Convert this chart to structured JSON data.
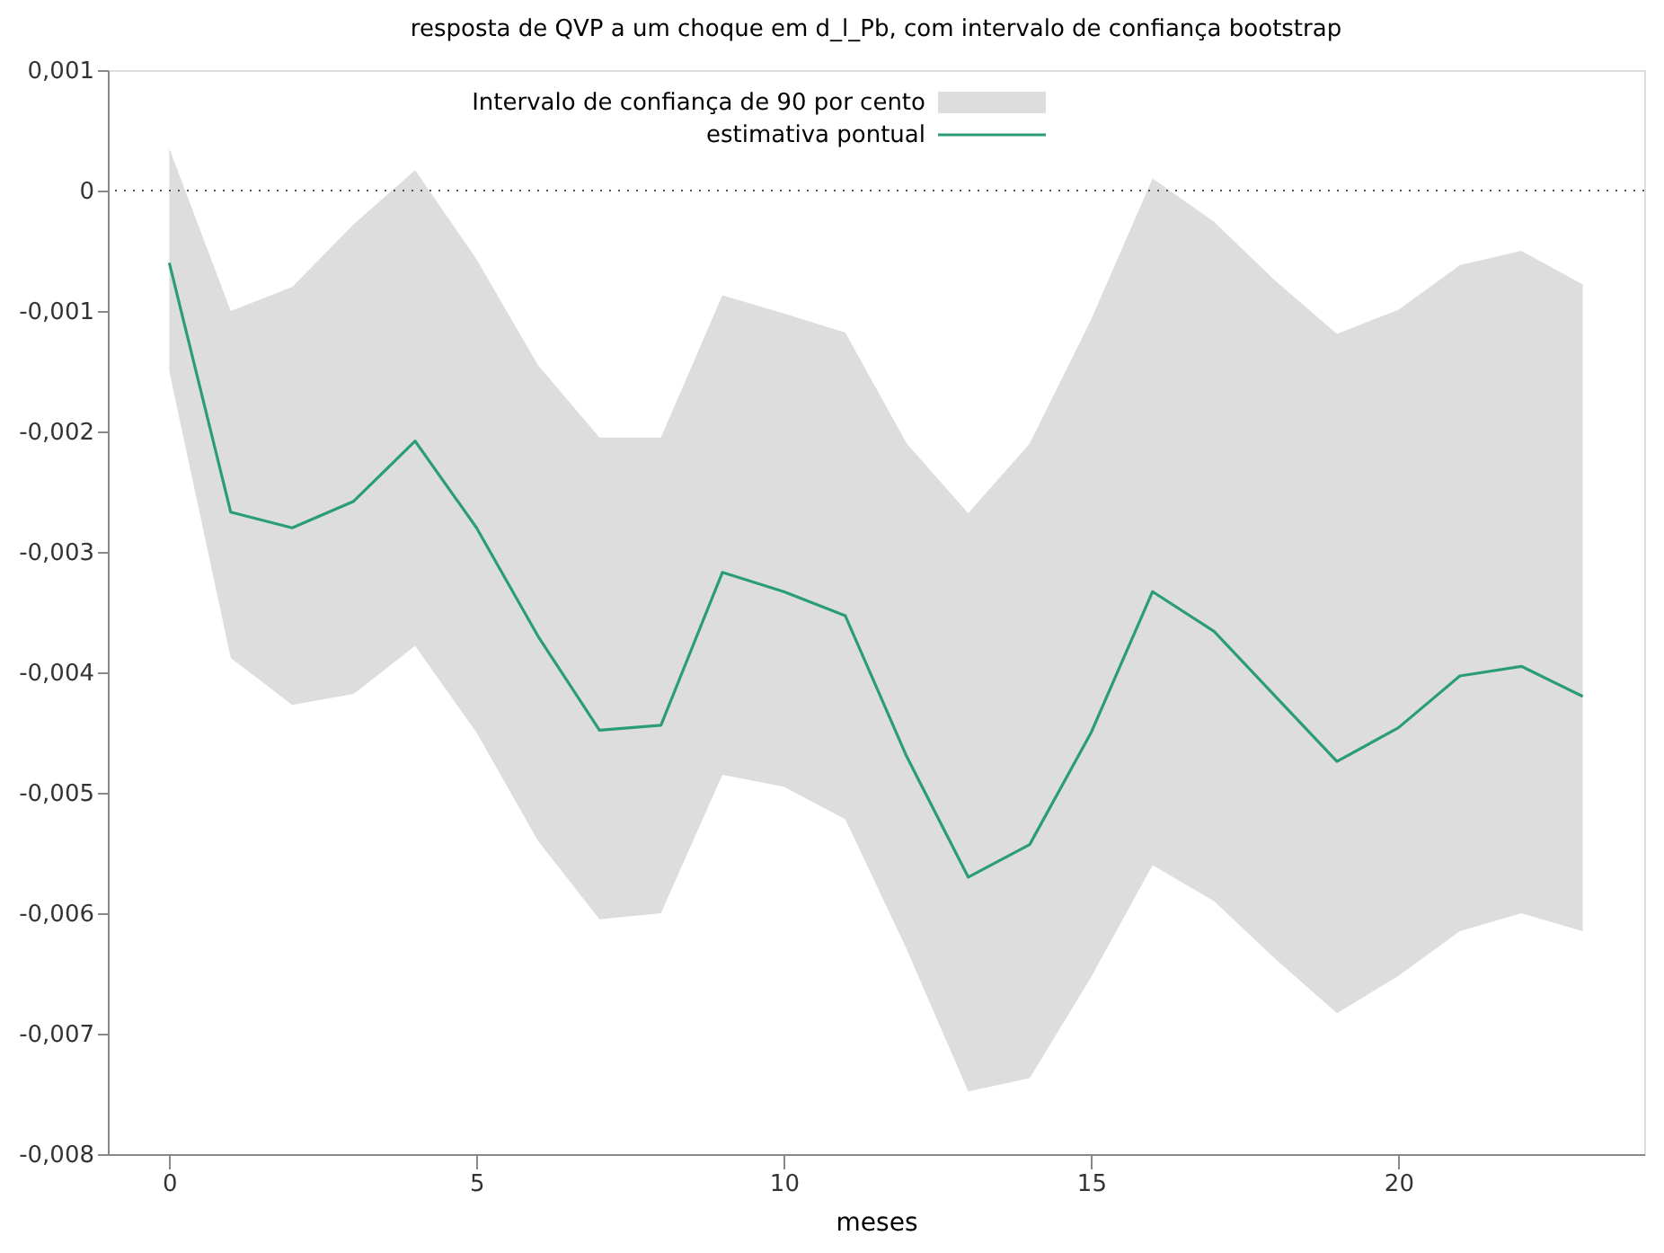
{
  "chart_data": {
    "type": "line",
    "title": "resposta de QVP a um choque em d_l_Pb, com intervalo de confiança bootstrap",
    "xlabel": "meses",
    "annotations": [
      "Intervalo de confiança de 90 por cento"
    ],
    "x": [
      0,
      1,
      2,
      3,
      4,
      5,
      6,
      7,
      8,
      9,
      10,
      11,
      12,
      13,
      14,
      15,
      16,
      17,
      18,
      19,
      20,
      21,
      22,
      23
    ],
    "series": [
      {
        "name": "estimativa pontual",
        "color": "#2a9d78",
        "values": [
          -0.0006,
          -0.00267,
          -0.0028,
          -0.00258,
          -0.00208,
          -0.0028,
          -0.0037,
          -0.00448,
          -0.00444,
          -0.00317,
          -0.00333,
          -0.00353,
          -0.0047,
          -0.0057,
          -0.00543,
          -0.0045,
          -0.00333,
          -0.00366,
          -0.0042,
          -0.00474,
          -0.00446,
          -0.00403,
          -0.00395,
          -0.0042
        ],
        "upper": [
          0.00035,
          -0.001,
          -0.0008,
          -0.00028,
          0.00017,
          -0.00057,
          -0.00145,
          -0.00205,
          -0.00205,
          -0.00087,
          -0.00102,
          -0.00118,
          -0.0021,
          -0.00268,
          -0.0021,
          -0.00107,
          0.0001,
          -0.00026,
          -0.00075,
          -0.00119,
          -0.00099,
          -0.00062,
          -0.0005,
          -0.00078
        ],
        "lower": [
          -0.0015,
          -0.00388,
          -0.00427,
          -0.00418,
          -0.00378,
          -0.0045,
          -0.0054,
          -0.00605,
          -0.006,
          -0.00485,
          -0.00495,
          -0.00522,
          -0.0063,
          -0.00748,
          -0.00737,
          -0.00653,
          -0.0056,
          -0.0059,
          -0.00638,
          -0.00683,
          -0.00652,
          -0.00615,
          -0.006,
          -0.00615
        ]
      }
    ],
    "xlim": [
      -1,
      24
    ],
    "xticks": [
      0,
      5,
      10,
      15,
      20
    ],
    "ylim": [
      -0.008,
      0.001
    ],
    "yticks": [
      {
        "value": -0.008,
        "label": "-0,008"
      },
      {
        "value": -0.007,
        "label": "-0,007"
      },
      {
        "value": -0.006,
        "label": "-0,006"
      },
      {
        "value": -0.005,
        "label": "-0,005"
      },
      {
        "value": -0.004,
        "label": "-0,004"
      },
      {
        "value": -0.003,
        "label": "-0,003"
      },
      {
        "value": -0.002,
        "label": "-0,002"
      },
      {
        "value": -0.001,
        "label": "-0,001"
      },
      {
        "value": 0,
        "label": "0"
      },
      {
        "value": 0.001,
        "label": "0,001"
      }
    ],
    "ref_lines": [
      {
        "axis": "y",
        "value": 0,
        "line_style": "dotted",
        "color": "#555555"
      }
    ],
    "legend": "top",
    "grid": false
  }
}
